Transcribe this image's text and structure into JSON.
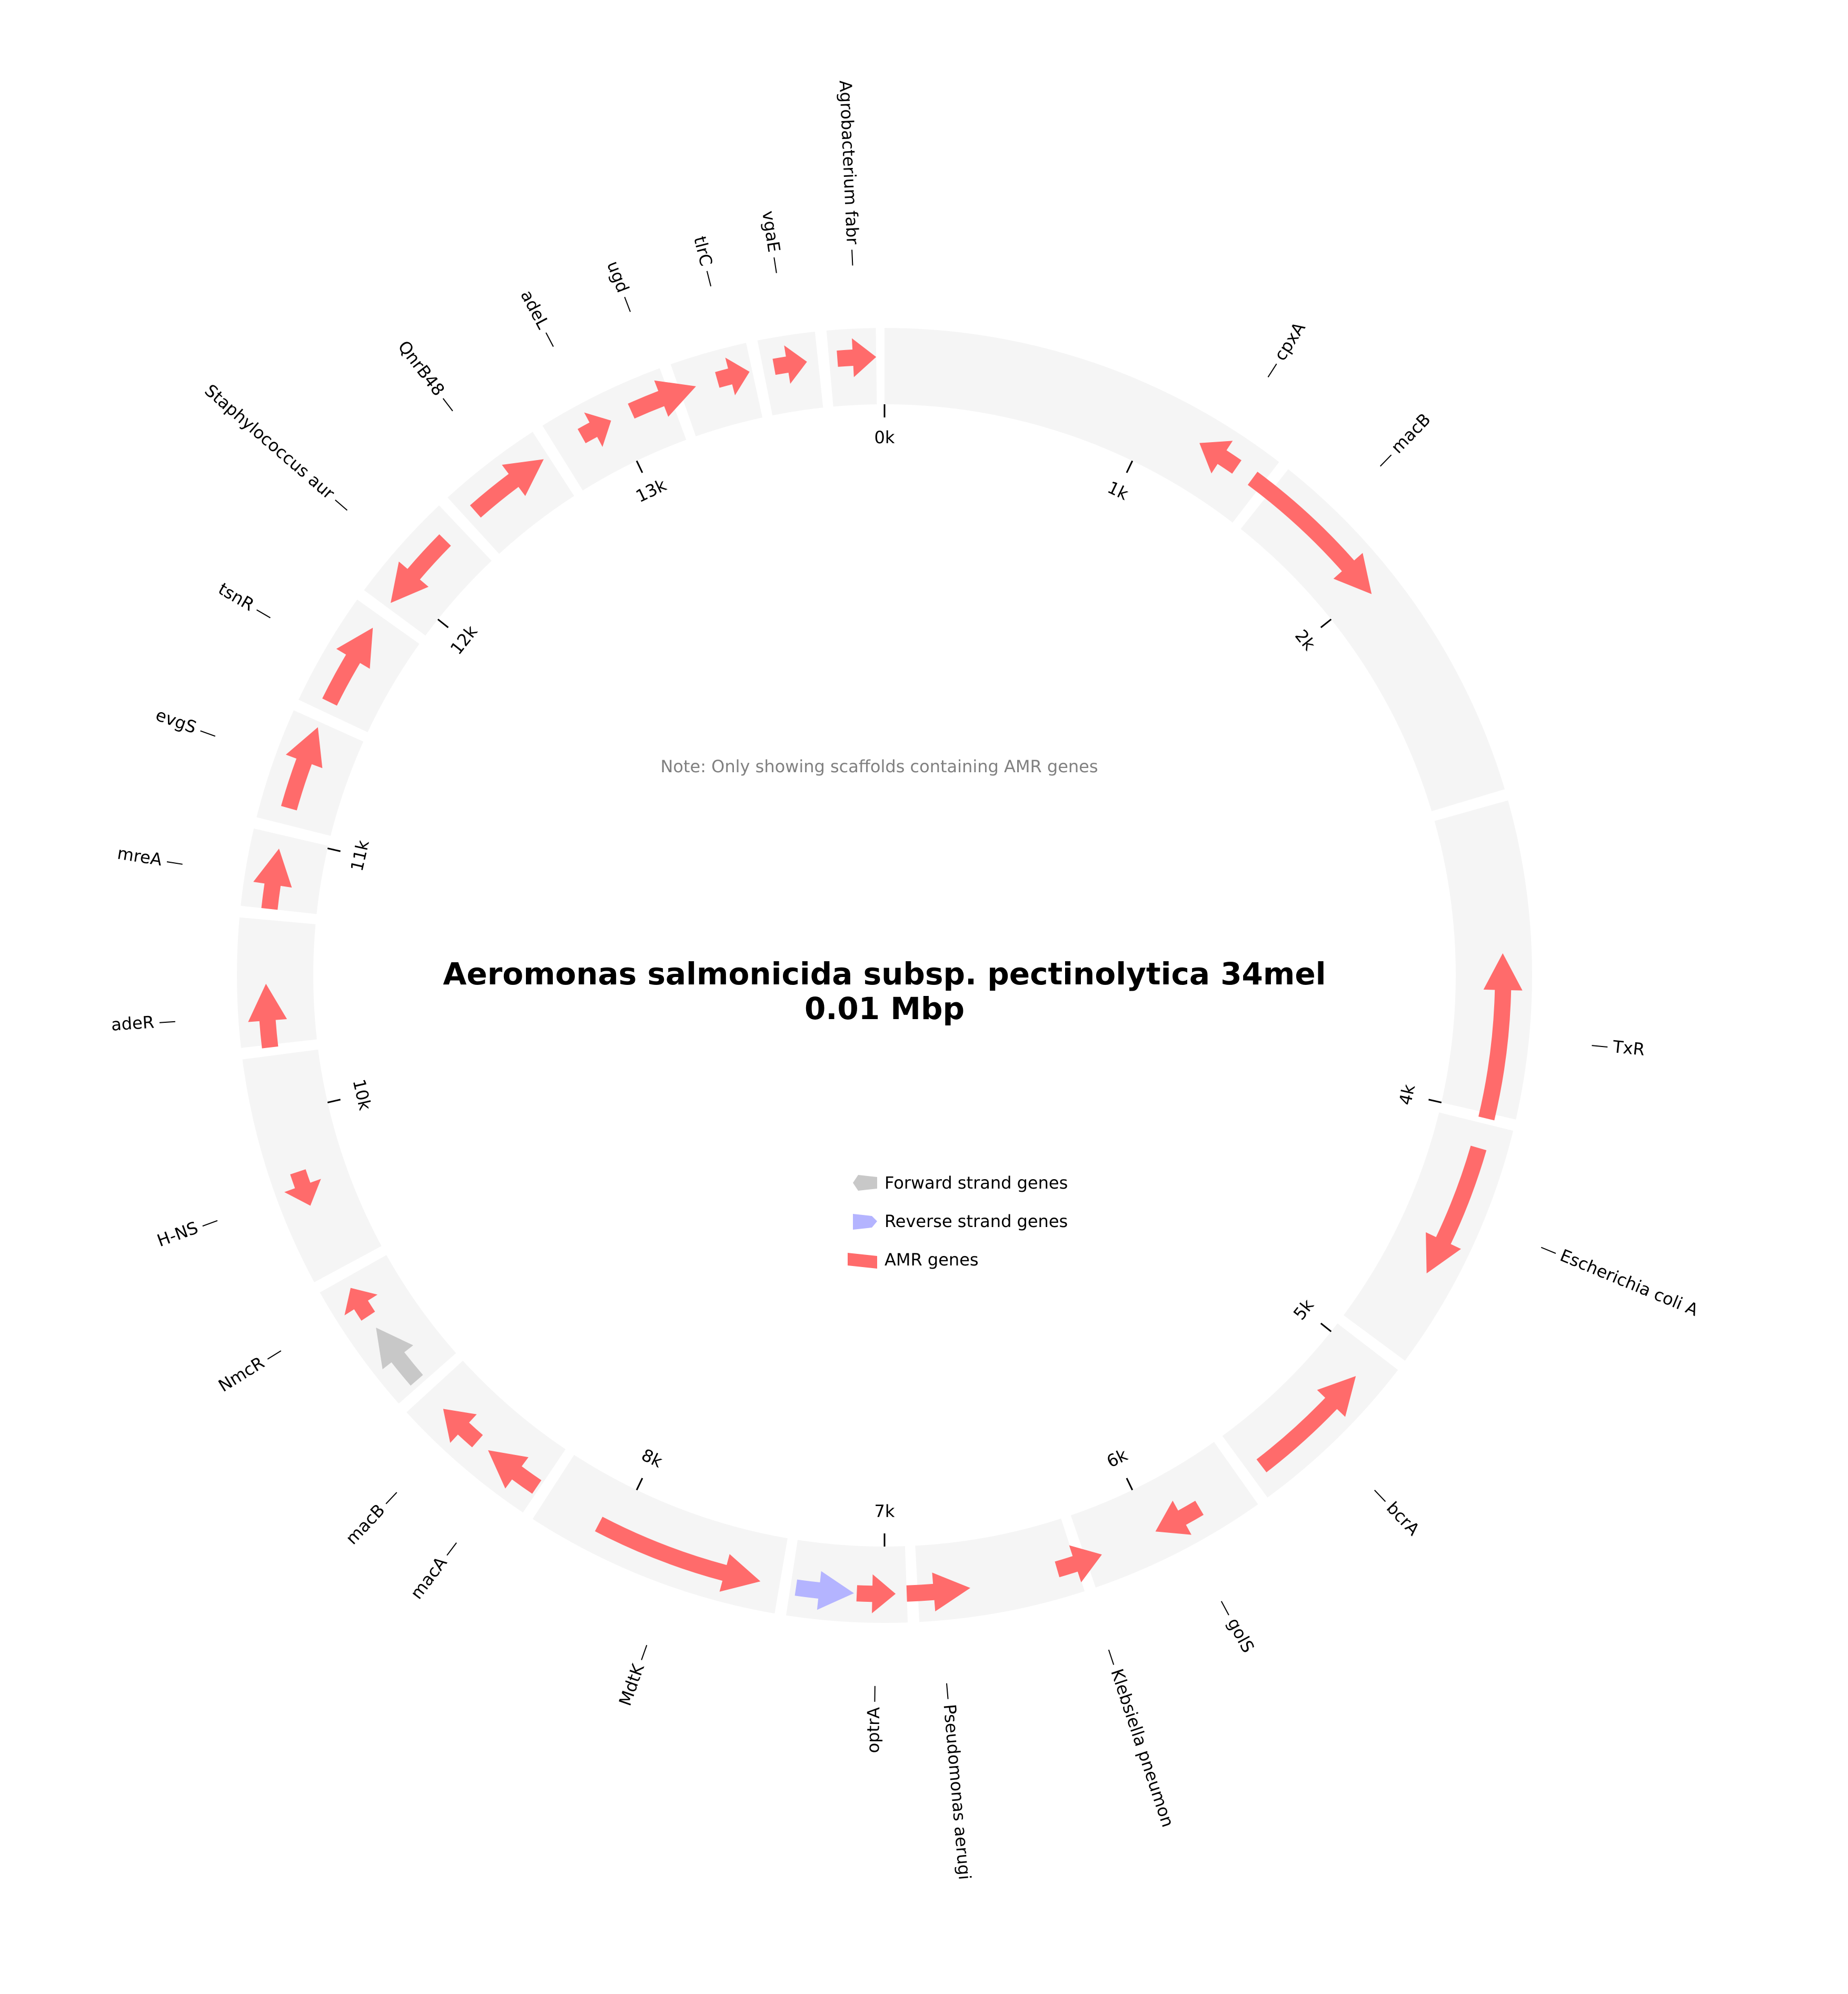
{
  "title": {
    "organism": "Aeromonas salmonicida subsp. pectinolytica 34mel",
    "size": "0.01 Mbp"
  },
  "note": "Note: Only showing scaffolds containing AMR genes",
  "legend": [
    {
      "label": "Forward strand genes",
      "color": "#c8c8c8"
    },
    {
      "label": "Reverse strand genes",
      "color": "#b4b4ff"
    },
    {
      "label": "AMR genes",
      "color": "#ff6b6b"
    }
  ],
  "chart_data": {
    "type": "circular-genome-map",
    "total_length_bp": 14000,
    "colors": {
      "background_ring": "#f5f5f5",
      "forward": "#c8c8c8",
      "reverse": "#b4b4ff",
      "amr": "#ff6b6b"
    },
    "scaffolds": [
      {
        "start": 0,
        "end": 1460
      },
      {
        "start": 1500,
        "end": 2850
      },
      {
        "start": 2890,
        "end": 4000
      },
      {
        "start": 4040,
        "end": 4920
      },
      {
        "start": 4960,
        "end": 5590
      },
      {
        "start": 5630,
        "end": 6260
      },
      {
        "start": 6300,
        "end": 6880
      },
      {
        "start": 6920,
        "end": 7340
      },
      {
        "start": 7380,
        "end": 8280
      },
      {
        "start": 8320,
        "end": 8850
      },
      {
        "start": 8890,
        "end": 9360
      },
      {
        "start": 9400,
        "end": 10210
      },
      {
        "start": 10250,
        "end": 10700
      },
      {
        "start": 10740,
        "end": 11010
      },
      {
        "start": 11050,
        "end": 11440
      },
      {
        "start": 11480,
        "end": 11880
      },
      {
        "start": 11920,
        "end": 12310
      },
      {
        "start": 12350,
        "end": 12720
      },
      {
        "start": 12760,
        "end": 13210
      },
      {
        "start": 13250,
        "end": 13520
      },
      {
        "start": 13560,
        "end": 13760
      },
      {
        "start": 13800,
        "end": 13970
      }
    ],
    "ticks": [
      {
        "pos": 0,
        "label": "0k"
      },
      {
        "pos": 1000,
        "label": "1k"
      },
      {
        "pos": 2000,
        "label": "2k"
      },
      {
        "pos": 4000,
        "label": "4k"
      },
      {
        "pos": 5000,
        "label": "5k"
      },
      {
        "pos": 6000,
        "label": "6k"
      },
      {
        "pos": 7000,
        "label": "7k"
      },
      {
        "pos": 8000,
        "label": "8k"
      },
      {
        "pos": 10000,
        "label": "10k"
      },
      {
        "pos": 11000,
        "label": "11k"
      },
      {
        "pos": 12000,
        "label": "12k"
      },
      {
        "pos": 13000,
        "label": "13k"
      }
    ],
    "genes": [
      {
        "name": "cpxA",
        "start": 1190,
        "end": 1350,
        "strand": "-",
        "type": "amr"
      },
      {
        "name": "macB",
        "start": 1420,
        "end": 2020,
        "strand": "+",
        "type": "amr"
      },
      {
        "name": "TxR",
        "start": 3420,
        "end": 4020,
        "strand": "-",
        "type": "amr"
      },
      {
        "name": "Escherichia coli A",
        "start": 4130,
        "end": 4620,
        "strand": "+",
        "type": "amr"
      },
      {
        "name": "bcrA",
        "start": 5070,
        "end": 5540,
        "strand": "-",
        "type": "amr"
      },
      {
        "name": "golS",
        "start": 5810,
        "end": 5990,
        "strand": "+",
        "type": "amr"
      },
      {
        "name": "Klebsiella pneumon",
        "start": 6200,
        "end": 6370,
        "strand": "-",
        "type": "amr"
      },
      {
        "name": "Pseudomonas aerugi",
        "start": 6690,
        "end": 6920,
        "strand": "-",
        "type": "amr"
      },
      {
        "name": "optrA",
        "start": 6960,
        "end": 7100,
        "strand": "-",
        "type": "amr"
      },
      {
        "name": "",
        "start": 7110,
        "end": 7320,
        "strand": "-",
        "type": "reverse"
      },
      {
        "name": "MdtK",
        "start": 7450,
        "end": 8070,
        "strand": "-",
        "type": "amr"
      },
      {
        "name": "macA",
        "start": 8330,
        "end": 8550,
        "strand": "+",
        "type": "amr"
      },
      {
        "name": "macB",
        "start": 8600,
        "end": 8770,
        "strand": "+",
        "type": "amr"
      },
      {
        "name": "",
        "start": 8910,
        "end": 9150,
        "strand": "+",
        "type": "forward"
      },
      {
        "name": "NmcR",
        "start": 9200,
        "end": 9320,
        "strand": "+",
        "type": "amr"
      },
      {
        "name": "H-NS",
        "start": 9650,
        "end": 9780,
        "strand": "-",
        "type": "amr"
      },
      {
        "name": "adeR",
        "start": 10240,
        "end": 10470,
        "strand": "+",
        "type": "amr"
      },
      {
        "name": "mreA",
        "start": 10740,
        "end": 10960,
        "strand": "+",
        "type": "amr"
      },
      {
        "name": "evgS",
        "start": 11110,
        "end": 11420,
        "strand": "+",
        "type": "amr"
      },
      {
        "name": "tsnR",
        "start": 11520,
        "end": 11830,
        "strand": "+",
        "type": "amr"
      },
      {
        "name": "Staphylococcus aur",
        "start": 11940,
        "end": 12240,
        "strand": "-",
        "type": "amr"
      },
      {
        "name": "QnrB48",
        "start": 12390,
        "end": 12700,
        "strand": "+",
        "type": "amr"
      },
      {
        "name": "adeL",
        "start": 12860,
        "end": 12980,
        "strand": "+",
        "type": "amr"
      },
      {
        "name": "ugd",
        "start": 13060,
        "end": 13310,
        "strand": "+",
        "type": "amr"
      },
      {
        "name": "tlrC",
        "start": 13390,
        "end": 13510,
        "strand": "+",
        "type": "amr"
      },
      {
        "name": "vgaE",
        "start": 13600,
        "end": 13720,
        "strand": "+",
        "type": "amr"
      },
      {
        "name": "Agrobacterium fabr",
        "start": 13830,
        "end": 13970,
        "strand": "+",
        "type": "amr"
      }
    ]
  }
}
